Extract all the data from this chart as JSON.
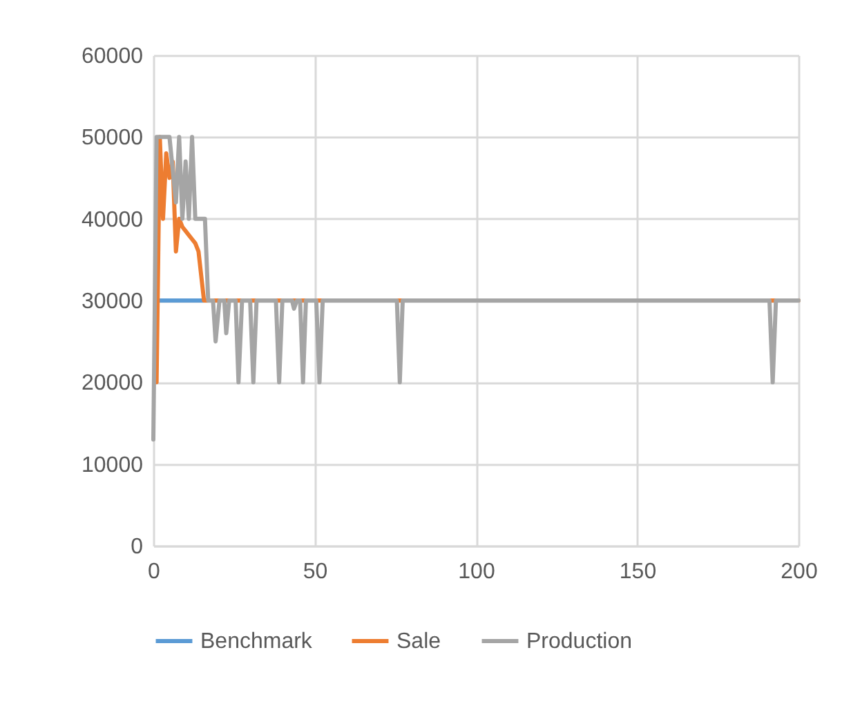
{
  "chart_data": {
    "type": "line",
    "xlim": [
      0,
      200
    ],
    "xticks": [
      0,
      50,
      100,
      150,
      200
    ],
    "ylim": [
      0,
      60000
    ],
    "yticks": [
      0,
      10000,
      20000,
      30000,
      40000,
      50000,
      60000
    ],
    "grid": true,
    "legend": "bottom",
    "marker": "none",
    "line_style": "solid",
    "series": [
      {
        "name": "Benchmark",
        "color": "#5b9bd5",
        "x": [
          1,
          16
        ],
        "values": [
          30000,
          30000
        ]
      },
      {
        "name": "Sale",
        "color": "#ed7d31",
        "x": [
          1,
          2,
          3,
          4,
          5,
          6,
          7,
          8,
          9,
          10,
          11,
          12,
          13,
          14,
          15.7,
          200
        ],
        "values": [
          20000,
          50000,
          40000,
          48000,
          45000,
          47000,
          36000,
          40000,
          39000,
          38500,
          38000,
          37500,
          37000,
          36000,
          30000,
          30000
        ]
      },
      {
        "name": "Production",
        "color": "#a5a5a5",
        "x": [
          0,
          1,
          5,
          7,
          8,
          9,
          10,
          11,
          12,
          13,
          16,
          17,
          18.5,
          19.3,
          20.5,
          22,
          22.6,
          23.5,
          25.5,
          26.4,
          27.5,
          30,
          31,
          32,
          38,
          39,
          40,
          43,
          43.6,
          44.5,
          45.5,
          46.4,
          47.3,
          50.5,
          51.5,
          52.5,
          75.5,
          76.4,
          77.3,
          191,
          192,
          193,
          200
        ],
        "values": [
          13000,
          50000,
          50000,
          42000,
          50000,
          40000,
          47000,
          40000,
          50000,
          40000,
          40000,
          30000,
          30000,
          25000,
          30000,
          30000,
          26000,
          30000,
          30000,
          20000,
          30000,
          30000,
          20000,
          30000,
          30000,
          20000,
          30000,
          30000,
          29000,
          30000,
          30000,
          20000,
          30000,
          30000,
          20000,
          30000,
          30000,
          20000,
          30000,
          30000,
          20000,
          30000,
          30000
        ]
      }
    ]
  }
}
